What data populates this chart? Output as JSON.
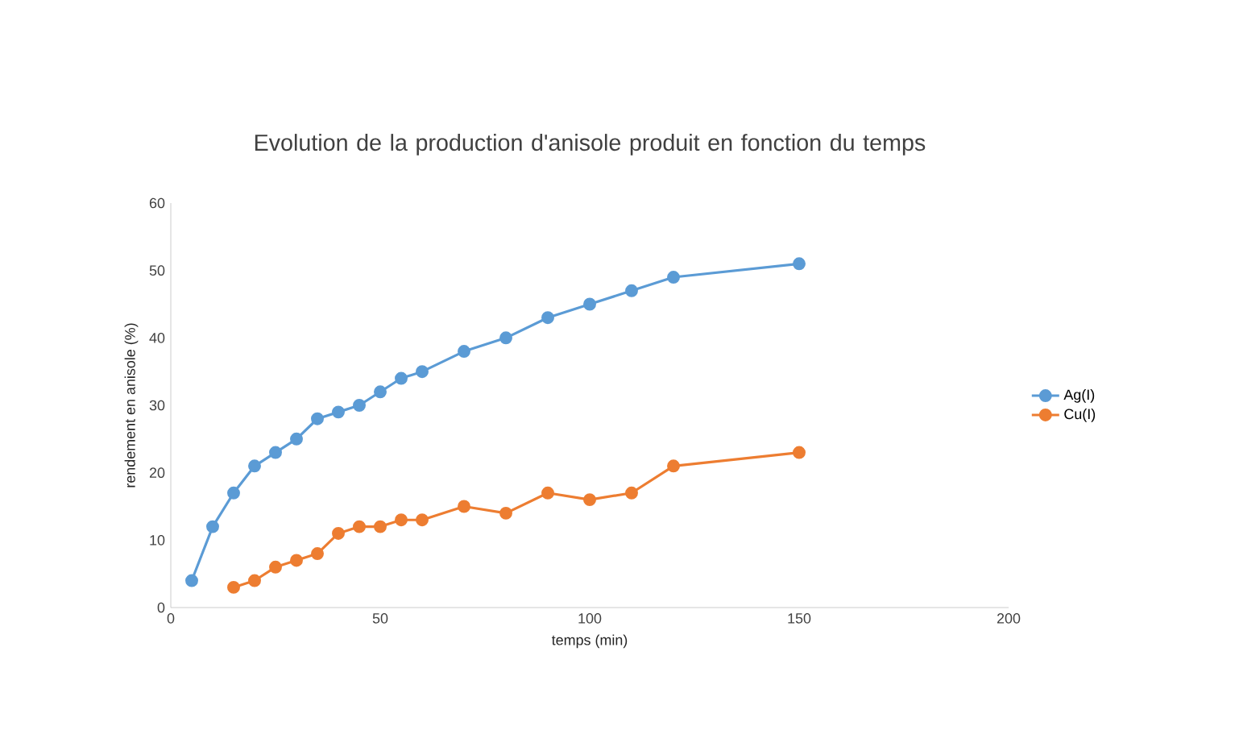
{
  "chart_data": {
    "type": "line",
    "title": "Evolution de la production d'anisole produit en fonction du temps",
    "xlabel": "temps (min)",
    "ylabel": "rendement en anisole (%)",
    "xlim": [
      0,
      200
    ],
    "xticks": [
      0,
      50,
      100,
      150,
      200
    ],
    "ylim": [
      0,
      60
    ],
    "yticks": [
      0,
      10,
      20,
      30,
      40,
      50,
      60
    ],
    "grid": false,
    "legend": "right",
    "marker": "circle",
    "line_style": "solid",
    "series": [
      {
        "name": "Ag(I)",
        "color": "#5b9bd5",
        "x": [
          5,
          10,
          15,
          20,
          25,
          30,
          35,
          40,
          45,
          50,
          55,
          60,
          70,
          80,
          90,
          100,
          110,
          120,
          150
        ],
        "values": [
          4,
          12,
          17,
          21,
          23,
          25,
          28,
          29,
          30,
          32,
          34,
          35,
          38,
          40,
          43,
          45,
          47,
          49,
          51
        ]
      },
      {
        "name": "Cu(I)",
        "color": "#ed7d31",
        "x": [
          15,
          20,
          25,
          30,
          35,
          40,
          45,
          50,
          55,
          60,
          70,
          80,
          90,
          100,
          110,
          120,
          150
        ],
        "values": [
          3,
          4,
          6,
          7,
          8,
          11,
          12,
          12,
          13,
          13,
          15,
          14,
          17,
          16,
          17,
          21,
          23
        ]
      }
    ]
  }
}
